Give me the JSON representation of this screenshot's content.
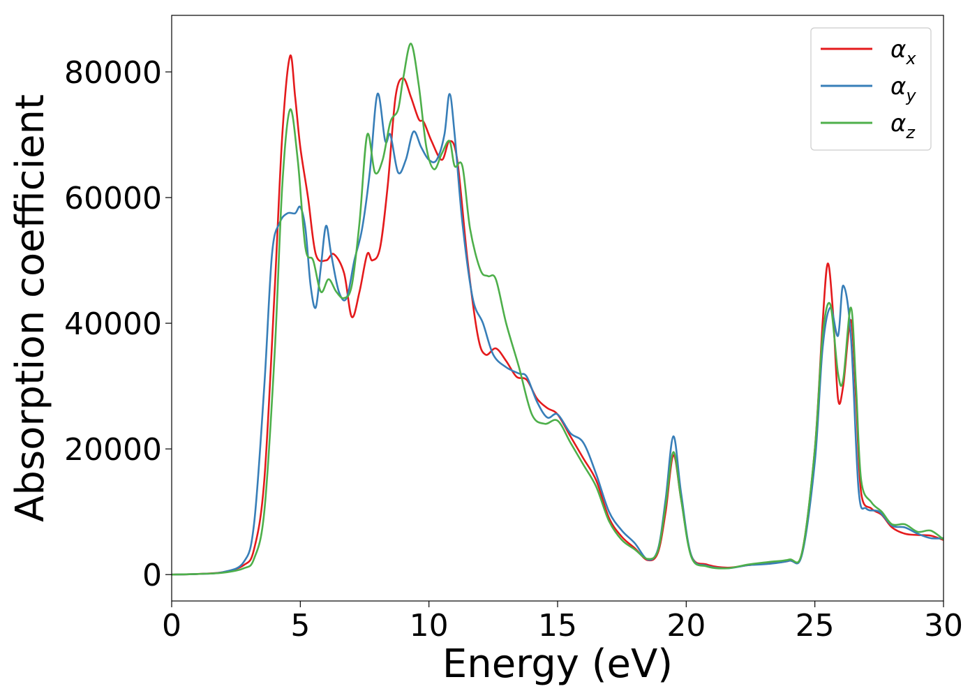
{
  "chart_data": {
    "type": "line",
    "xlabel": "Energy (eV)",
    "ylabel": "Absorption coefficient",
    "xlim": [
      0,
      30
    ],
    "ylim": [
      -4200,
      89000
    ],
    "xticks": [
      0,
      5,
      10,
      15,
      20,
      25,
      30
    ],
    "yticks": [
      0,
      20000,
      40000,
      60000,
      80000
    ],
    "grid": false,
    "legend_position": "top-right",
    "series": [
      {
        "name": "αx",
        "legend_main": "α",
        "legend_sub": "x",
        "color": "#e41a1c",
        "points": [
          [
            0,
            0
          ],
          [
            1,
            100
          ],
          [
            2,
            400
          ],
          [
            2.8,
            1500
          ],
          [
            3.2,
            4000
          ],
          [
            3.6,
            15000
          ],
          [
            4.0,
            45000
          ],
          [
            4.3,
            70000
          ],
          [
            4.6,
            82500
          ],
          [
            4.8,
            76000
          ],
          [
            5.0,
            68000
          ],
          [
            5.3,
            60000
          ],
          [
            5.6,
            51000
          ],
          [
            6.0,
            50000
          ],
          [
            6.3,
            51000
          ],
          [
            6.7,
            48000
          ],
          [
            7.0,
            41000
          ],
          [
            7.3,
            45000
          ],
          [
            7.6,
            51000
          ],
          [
            7.8,
            50000
          ],
          [
            8.1,
            52000
          ],
          [
            8.4,
            62000
          ],
          [
            8.7,
            76000
          ],
          [
            9.0,
            79000
          ],
          [
            9.3,
            76000
          ],
          [
            9.6,
            72500
          ],
          [
            9.8,
            72000
          ],
          [
            10.1,
            69000
          ],
          [
            10.5,
            66000
          ],
          [
            10.8,
            69000
          ],
          [
            11.1,
            66000
          ],
          [
            11.5,
            50000
          ],
          [
            11.9,
            38000
          ],
          [
            12.2,
            35000
          ],
          [
            12.6,
            36000
          ],
          [
            13.0,
            34000
          ],
          [
            13.4,
            31500
          ],
          [
            13.8,
            31000
          ],
          [
            14.2,
            28000
          ],
          [
            14.6,
            26500
          ],
          [
            15.0,
            25500
          ],
          [
            15.5,
            22000
          ],
          [
            16.0,
            18500
          ],
          [
            16.5,
            15000
          ],
          [
            17.0,
            9000
          ],
          [
            17.5,
            6000
          ],
          [
            18.0,
            4200
          ],
          [
            18.5,
            2300
          ],
          [
            18.9,
            3500
          ],
          [
            19.2,
            10000
          ],
          [
            19.5,
            19000
          ],
          [
            19.8,
            12000
          ],
          [
            20.2,
            3000
          ],
          [
            20.8,
            1600
          ],
          [
            21.6,
            1100
          ],
          [
            22.4,
            1500
          ],
          [
            23.2,
            1800
          ],
          [
            24.0,
            2200
          ],
          [
            24.5,
            3500
          ],
          [
            25.0,
            20000
          ],
          [
            25.3,
            40000
          ],
          [
            25.5,
            49500
          ],
          [
            25.7,
            42000
          ],
          [
            25.9,
            28000
          ],
          [
            26.1,
            30000
          ],
          [
            26.4,
            40500
          ],
          [
            26.6,
            28000
          ],
          [
            26.8,
            13000
          ],
          [
            27.2,
            10500
          ],
          [
            27.6,
            9500
          ],
          [
            28.0,
            7500
          ],
          [
            28.5,
            6500
          ],
          [
            29.0,
            6300
          ],
          [
            29.5,
            6200
          ],
          [
            30.0,
            5500
          ]
        ]
      },
      {
        "name": "αy",
        "legend_main": "α",
        "legend_sub": "y",
        "color": "#377eb8",
        "points": [
          [
            0,
            0
          ],
          [
            1,
            100
          ],
          [
            2,
            400
          ],
          [
            2.8,
            2000
          ],
          [
            3.2,
            8000
          ],
          [
            3.6,
            30000
          ],
          [
            3.9,
            51000
          ],
          [
            4.2,
            56000
          ],
          [
            4.5,
            57500
          ],
          [
            4.8,
            57500
          ],
          [
            5.0,
            58500
          ],
          [
            5.2,
            55000
          ],
          [
            5.4,
            46000
          ],
          [
            5.6,
            42500
          ],
          [
            5.8,
            49000
          ],
          [
            6.0,
            55500
          ],
          [
            6.2,
            51000
          ],
          [
            6.5,
            45000
          ],
          [
            6.8,
            44000
          ],
          [
            7.1,
            50000
          ],
          [
            7.4,
            55000
          ],
          [
            7.7,
            64000
          ],
          [
            8.0,
            76500
          ],
          [
            8.3,
            69000
          ],
          [
            8.5,
            70000
          ],
          [
            8.8,
            64000
          ],
          [
            9.1,
            66000
          ],
          [
            9.4,
            70500
          ],
          [
            9.7,
            68000
          ],
          [
            10.0,
            66000
          ],
          [
            10.3,
            66000
          ],
          [
            10.6,
            70000
          ],
          [
            10.8,
            76500
          ],
          [
            11.0,
            70000
          ],
          [
            11.3,
            56000
          ],
          [
            11.7,
            44000
          ],
          [
            12.1,
            40000
          ],
          [
            12.5,
            35000
          ],
          [
            13.0,
            33000
          ],
          [
            13.5,
            32000
          ],
          [
            13.8,
            31500
          ],
          [
            14.2,
            27500
          ],
          [
            14.6,
            25000
          ],
          [
            15.0,
            25500
          ],
          [
            15.5,
            22500
          ],
          [
            16.0,
            21000
          ],
          [
            16.5,
            16000
          ],
          [
            17.0,
            10000
          ],
          [
            17.5,
            7000
          ],
          [
            18.0,
            5000
          ],
          [
            18.5,
            2400
          ],
          [
            18.9,
            4000
          ],
          [
            19.2,
            12000
          ],
          [
            19.5,
            22000
          ],
          [
            19.8,
            13000
          ],
          [
            20.2,
            3000
          ],
          [
            20.8,
            1400
          ],
          [
            21.6,
            1000
          ],
          [
            22.4,
            1500
          ],
          [
            23.2,
            1700
          ],
          [
            24.0,
            2200
          ],
          [
            24.5,
            3200
          ],
          [
            25.0,
            18000
          ],
          [
            25.3,
            36000
          ],
          [
            25.6,
            42500
          ],
          [
            25.9,
            38000
          ],
          [
            26.1,
            46000
          ],
          [
            26.4,
            38000
          ],
          [
            26.7,
            13500
          ],
          [
            27.0,
            10500
          ],
          [
            27.5,
            10000
          ],
          [
            28.0,
            7800
          ],
          [
            28.5,
            7500
          ],
          [
            29.0,
            6500
          ],
          [
            29.5,
            5800
          ],
          [
            30.0,
            5800
          ]
        ]
      },
      {
        "name": "αz",
        "legend_main": "α",
        "legend_sub": "z",
        "color": "#4daf4a",
        "points": [
          [
            0,
            0
          ],
          [
            1,
            100
          ],
          [
            2,
            300
          ],
          [
            2.8,
            1000
          ],
          [
            3.2,
            2500
          ],
          [
            3.6,
            10000
          ],
          [
            4.0,
            35000
          ],
          [
            4.3,
            62000
          ],
          [
            4.6,
            74000
          ],
          [
            4.9,
            66000
          ],
          [
            5.2,
            52000
          ],
          [
            5.5,
            50000
          ],
          [
            5.8,
            45000
          ],
          [
            6.1,
            47000
          ],
          [
            6.4,
            45000
          ],
          [
            6.7,
            44000
          ],
          [
            7.0,
            46000
          ],
          [
            7.3,
            56000
          ],
          [
            7.6,
            70000
          ],
          [
            7.9,
            64000
          ],
          [
            8.2,
            66000
          ],
          [
            8.5,
            72000
          ],
          [
            8.8,
            74000
          ],
          [
            9.0,
            79000
          ],
          [
            9.3,
            84500
          ],
          [
            9.6,
            78000
          ],
          [
            9.9,
            68000
          ],
          [
            10.2,
            64500
          ],
          [
            10.5,
            67000
          ],
          [
            10.8,
            69000
          ],
          [
            11.0,
            65000
          ],
          [
            11.3,
            65000
          ],
          [
            11.6,
            55000
          ],
          [
            12.0,
            48500
          ],
          [
            12.3,
            47500
          ],
          [
            12.6,
            47000
          ],
          [
            13.0,
            40000
          ],
          [
            13.5,
            33000
          ],
          [
            14.0,
            25500
          ],
          [
            14.5,
            24000
          ],
          [
            15.0,
            24500
          ],
          [
            15.5,
            21000
          ],
          [
            16.0,
            17500
          ],
          [
            16.5,
            14000
          ],
          [
            17.0,
            8500
          ],
          [
            17.5,
            5500
          ],
          [
            18.0,
            4000
          ],
          [
            18.5,
            2500
          ],
          [
            18.9,
            3800
          ],
          [
            19.2,
            11000
          ],
          [
            19.5,
            19500
          ],
          [
            19.8,
            12000
          ],
          [
            20.2,
            2800
          ],
          [
            20.8,
            1300
          ],
          [
            21.6,
            1000
          ],
          [
            22.4,
            1600
          ],
          [
            23.2,
            2000
          ],
          [
            24.0,
            2400
          ],
          [
            24.5,
            3500
          ],
          [
            25.0,
            20000
          ],
          [
            25.3,
            38000
          ],
          [
            25.6,
            43000
          ],
          [
            25.9,
            32000
          ],
          [
            26.1,
            31000
          ],
          [
            26.4,
            42500
          ],
          [
            26.6,
            30000
          ],
          [
            26.8,
            15000
          ],
          [
            27.2,
            11500
          ],
          [
            27.6,
            10000
          ],
          [
            28.0,
            8000
          ],
          [
            28.5,
            8000
          ],
          [
            29.0,
            6800
          ],
          [
            29.5,
            7000
          ],
          [
            30.0,
            5600
          ]
        ]
      }
    ]
  }
}
